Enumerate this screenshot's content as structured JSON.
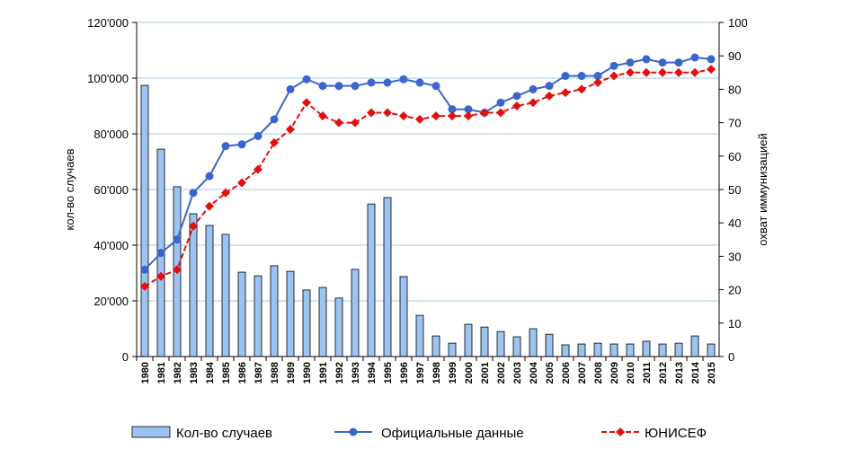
{
  "chart_data": {
    "type": "bar+line",
    "categories": [
      "1980",
      "1981",
      "1982",
      "1983",
      "1984",
      "1985",
      "1986",
      "1987",
      "1988",
      "1989",
      "1990",
      "1991",
      "1992",
      "1993",
      "1994",
      "1995",
      "1996",
      "1997",
      "1998",
      "1999",
      "2000",
      "2001",
      "2002",
      "2003",
      "2004",
      "2005",
      "2006",
      "2007",
      "2008",
      "2009",
      "2010",
      "2011",
      "2012",
      "2013",
      "2014",
      "2015"
    ],
    "ylabel": "кол-во случаев",
    "y2label": "охват иммунизацией",
    "ylim": [
      0,
      120000
    ],
    "y2lim": [
      0,
      100
    ],
    "yticks": [
      "0",
      "20'000",
      "40'000",
      "60'000",
      "80'000",
      "100'000",
      "120'000"
    ],
    "y2ticks": [
      "0",
      "10",
      "20",
      "30",
      "40",
      "50",
      "60",
      "70",
      "80",
      "90",
      "100"
    ],
    "grid": true,
    "legend_position": "bottom",
    "colors": {
      "bars": "#9dc3f0",
      "bar_stroke": "#000000",
      "official": "#3a66cc",
      "unicef": "#e01010",
      "grid": "#a9c8d8"
    },
    "series": [
      {
        "name": "Кол-во случаев",
        "type": "bar",
        "axis": "left",
        "values": [
          97400,
          74500,
          61000,
          51300,
          47100,
          43900,
          30300,
          29000,
          32600,
          30600,
          23900,
          24800,
          21000,
          31300,
          54800,
          57100,
          28700,
          14800,
          7400,
          4800,
          11600,
          10600,
          9000,
          7100,
          10000,
          8000,
          4200,
          4500,
          4800,
          4500,
          4500,
          5500,
          4500,
          4800,
          7400,
          4500
        ]
      },
      {
        "name": "Официальные данные",
        "type": "line",
        "axis": "right",
        "values": [
          26,
          31,
          35,
          49,
          54,
          63,
          63.5,
          66,
          71,
          80,
          83,
          81,
          81,
          81,
          82,
          82,
          83,
          82,
          81,
          74,
          74,
          73,
          76,
          78,
          80,
          81,
          84,
          84,
          84,
          87,
          88,
          89,
          88,
          88,
          89.5,
          89
        ]
      },
      {
        "name": "ЮНИСЕФ",
        "type": "line-dashed",
        "axis": "right",
        "values": [
          21,
          24,
          26,
          39,
          45,
          49,
          52,
          56,
          64,
          68,
          76,
          72,
          70,
          70,
          73,
          73,
          72,
          71,
          72,
          72,
          72,
          73,
          73,
          75,
          76,
          78,
          79,
          80,
          82,
          84,
          85,
          85,
          85,
          85,
          85,
          86
        ]
      }
    ]
  }
}
